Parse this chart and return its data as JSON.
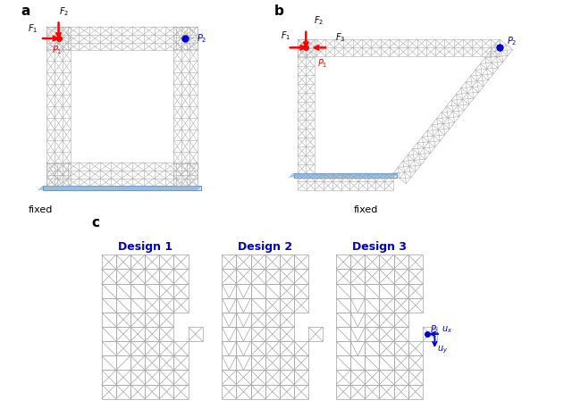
{
  "fig_width": 6.4,
  "fig_height": 4.58,
  "dpi": 100,
  "bg_color": "#ffffff",
  "mesh_color": "#aaaaaa",
  "blue_color": "#0000cc",
  "red_color": "#dd0000",
  "design1_title": "Design 1",
  "design2_title": "Design 2",
  "design3_title": "Design 3",
  "fixed_text": "fixed"
}
